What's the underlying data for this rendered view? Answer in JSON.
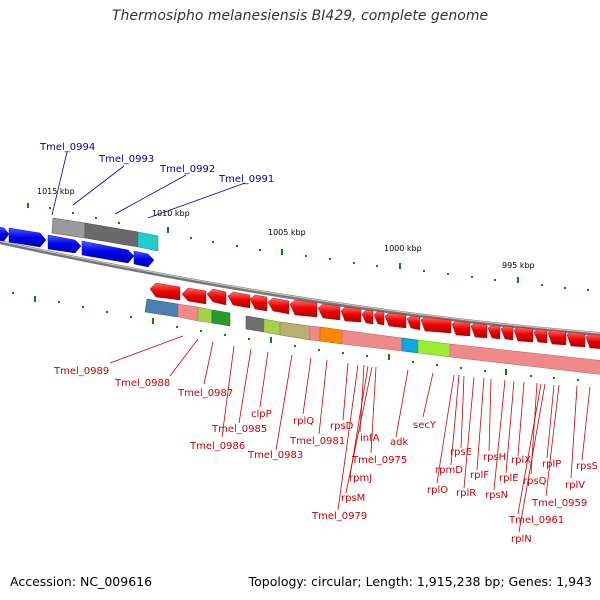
{
  "title": "Thermosipho melanesiensis BI429, complete genome",
  "accession": "Accession: NC_009616",
  "topology": "Topology: circular; Length: 1,915,238 bp; Genes: 1,943",
  "colors": {
    "forward_label": "#0000aa",
    "reverse_label": "#cc0000",
    "forward_gene": "#0000ee",
    "reverse_gene": "#ee0000",
    "backbone": "#888888",
    "tick": "#008800"
  },
  "scale_labels": [
    {
      "id": "kbp1015",
      "text": "1015 kbp"
    },
    {
      "id": "kbp1010",
      "text": "1010 kbp"
    },
    {
      "id": "kbp1005",
      "text": "1005 kbp"
    },
    {
      "id": "kbp1000",
      "text": "1000 kbp"
    },
    {
      "id": "kbp995",
      "text": "995 kbp"
    }
  ],
  "forward_labels": [
    "Tmel_0994",
    "Tmel_0993",
    "Tmel_0992",
    "Tmel_0991"
  ],
  "reverse_labels": [
    "Tmel_0989",
    "Tmel_0988",
    "Tmel_0987",
    "Tmel_0986",
    "Tmel_0985",
    "clpP",
    "Tmel_0983",
    "rplQ",
    "Tmel_0981",
    "rpsD",
    "infA",
    "Tmel_0979",
    "rpmJ",
    "Tmel_0975",
    "rpsM",
    "adk",
    "secY",
    "rplO",
    "rpmD",
    "rpsE",
    "rplR",
    "rplF",
    "rpsH",
    "rpsN",
    "rplE",
    "rplX",
    "rpsQ",
    "Tmel_0961",
    "rplN",
    "rplP",
    "Tmel_0959",
    "rplV",
    "rpsS"
  ]
}
